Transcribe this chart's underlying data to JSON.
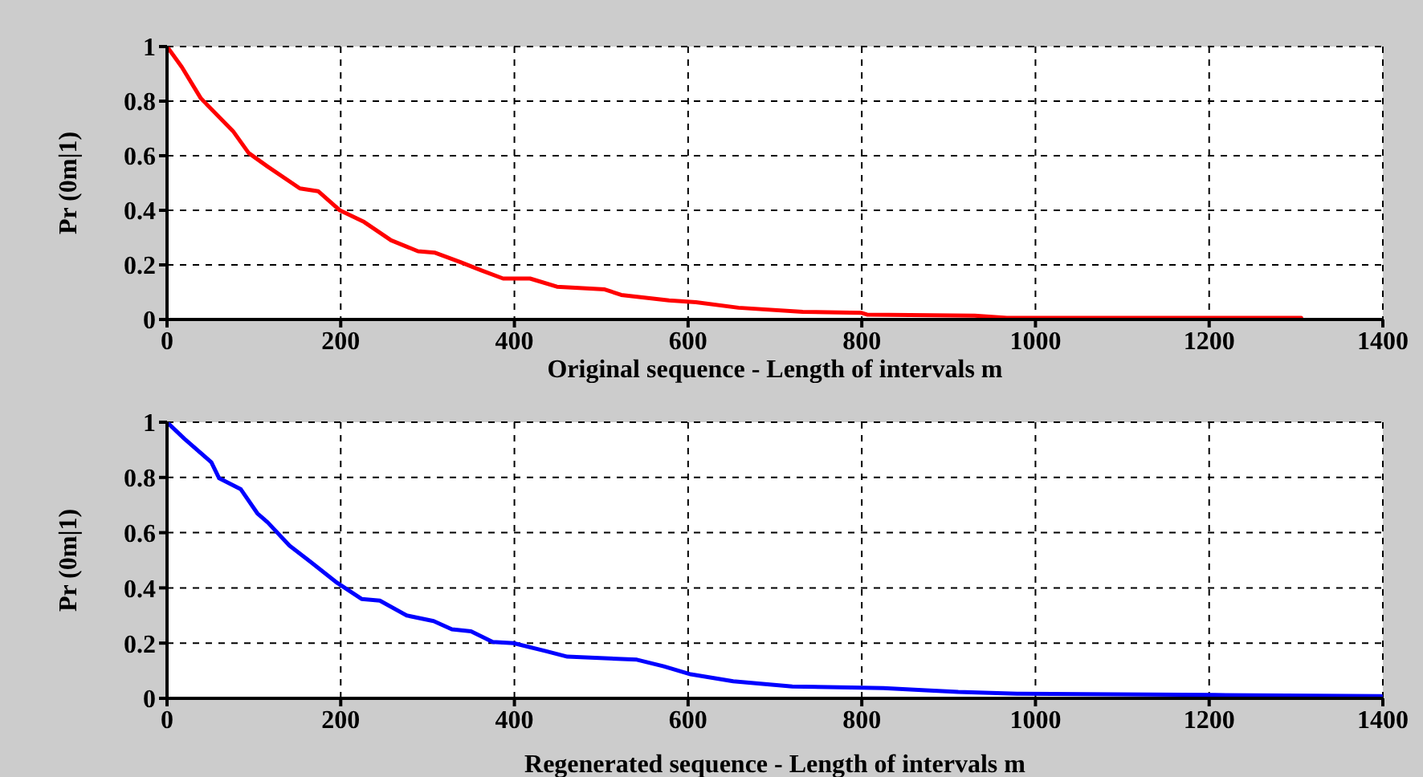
{
  "chart_data": [
    {
      "type": "line",
      "xlabel": "Original sequence - Length of intervals m",
      "ylabel": "Pr (0m|1)",
      "xlim": [
        0,
        1400
      ],
      "xticks": [
        0,
        200,
        400,
        600,
        800,
        1000,
        1200,
        1400
      ],
      "ylim": [
        0,
        1
      ],
      "yticks": [
        0,
        0.2,
        0.4,
        0.6,
        0.8,
        1
      ],
      "grid": true,
      "marker": "none",
      "line_style": "solid",
      "series": [
        {
          "color": "#ff0000",
          "x": [
            0,
            17,
            39,
            76,
            94,
            116,
            153,
            174,
            199,
            227,
            258,
            289,
            308,
            338,
            362,
            387,
            418,
            449,
            504,
            523,
            578,
            609,
            658,
            732,
            800,
            806,
            930,
            967,
            1306
          ],
          "values": [
            1,
            0.925,
            0.81,
            0.69,
            0.61,
            0.56,
            0.48,
            0.47,
            0.4,
            0.357,
            0.29,
            0.25,
            0.245,
            0.21,
            0.18,
            0.15,
            0.15,
            0.12,
            0.11,
            0.09,
            0.07,
            0.063,
            0.043,
            0.028,
            0.024,
            0.018,
            0.014,
            0.006,
            0.006
          ]
        }
      ]
    },
    {
      "type": "line",
      "xlabel": "Regenerated sequence - Length of intervals m",
      "ylabel": "Pr (0m|1)",
      "xlim": [
        0,
        1400
      ],
      "xticks": [
        0,
        200,
        400,
        600,
        800,
        1000,
        1200,
        1400
      ],
      "ylim": [
        0,
        1
      ],
      "yticks": [
        0,
        0.2,
        0.4,
        0.6,
        0.8,
        1
      ],
      "grid": true,
      "marker": "none",
      "line_style": "solid",
      "series": [
        {
          "color": "#0000ff",
          "x": [
            0,
            20,
            51,
            60,
            85,
            104,
            116,
            141,
            165,
            196,
            224,
            245,
            276,
            307,
            328,
            350,
            375,
            399,
            436,
            461,
            541,
            572,
            603,
            652,
            720,
            788,
            825,
            874,
            911,
            979,
            1207,
            1398
          ],
          "values": [
            1,
            0.94,
            0.855,
            0.797,
            0.757,
            0.67,
            0.637,
            0.553,
            0.495,
            0.418,
            0.36,
            0.354,
            0.3,
            0.28,
            0.25,
            0.243,
            0.204,
            0.2,
            0.171,
            0.151,
            0.14,
            0.116,
            0.087,
            0.062,
            0.043,
            0.039,
            0.037,
            0.029,
            0.023,
            0.017,
            0.012,
            0.008
          ]
        }
      ]
    }
  ]
}
